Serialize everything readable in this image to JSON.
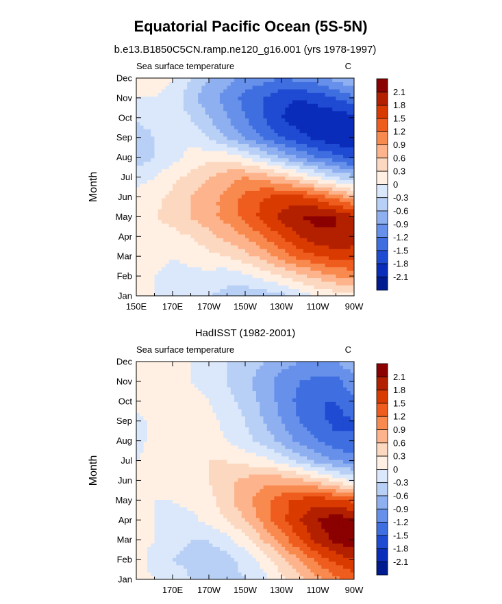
{
  "title": "Equatorial Pacific Ocean (5S-5N)",
  "colorbar_levels": [
    "2.1",
    "1.8",
    "1.5",
    "1.2",
    "0.9",
    "0.6",
    "0.3",
    "0",
    "-0.3",
    "-0.6",
    "-0.9",
    "-1.2",
    "-1.5",
    "-1.8",
    "-2.1"
  ],
  "colorbar_colors": [
    "#8b0000",
    "#b22000",
    "#d93a00",
    "#ef5d1e",
    "#f98a4f",
    "#fdb48c",
    "#fdd8c1",
    "#fff0e3",
    "#dbe8fb",
    "#b9d0f6",
    "#8fb0f0",
    "#6690ea",
    "#3f6ee0",
    "#1f4bd3",
    "#0a2cba",
    "#001a8f"
  ],
  "chart_data": [
    {
      "type": "heatmap",
      "panel_title": "b.e13.B1850C5CN.ramp.ne120_g16.001 (yrs 1978-1997)",
      "left_label": "Sea surface temperature",
      "units": "C",
      "ylabel": "Month",
      "xlabel": "",
      "xlim": [
        150,
        270
      ],
      "x_ticks": [
        150,
        170,
        190,
        210,
        230,
        250,
        270
      ],
      "x_tick_labels": [
        "150E",
        "170E",
        "170W",
        "150W",
        "130W",
        "110W",
        "90W"
      ],
      "y_tick_labels": [
        "Jan",
        "Feb",
        "Mar",
        "Apr",
        "May",
        "Jun",
        "Jul",
        "Aug",
        "Sep",
        "Oct",
        "Nov",
        "Dec"
      ],
      "x": [
        150,
        160,
        170,
        180,
        190,
        200,
        210,
        220,
        230,
        240,
        250,
        260,
        270
      ],
      "z": [
        [
          0.1,
          0.0,
          -0.1,
          -0.2,
          -0.3,
          -0.4,
          -0.5,
          -0.5,
          -0.4,
          -0.2,
          0.0,
          0.1,
          0.2
        ],
        [
          0.1,
          0.0,
          -0.1,
          -0.1,
          -0.1,
          -0.2,
          -0.1,
          0.1,
          0.3,
          0.5,
          0.7,
          0.9,
          1.0
        ],
        [
          0.1,
          0.1,
          0.0,
          0.1,
          0.2,
          0.3,
          0.5,
          0.7,
          1.0,
          1.3,
          1.5,
          1.6,
          1.6
        ],
        [
          0.1,
          0.1,
          0.2,
          0.3,
          0.5,
          0.7,
          0.9,
          1.2,
          1.5,
          1.8,
          2.0,
          2.1,
          2.0
        ],
        [
          0.2,
          0.3,
          0.4,
          0.6,
          0.8,
          1.0,
          1.3,
          1.6,
          1.9,
          2.1,
          2.2,
          2.1,
          1.9
        ],
        [
          0.1,
          0.2,
          0.4,
          0.6,
          0.8,
          1.0,
          1.3,
          1.5,
          1.6,
          1.6,
          1.4,
          1.1,
          0.8
        ],
        [
          -0.1,
          0.0,
          0.2,
          0.4,
          0.6,
          0.8,
          0.9,
          0.8,
          0.6,
          0.3,
          0.0,
          -0.3,
          -0.5
        ],
        [
          -0.5,
          -0.3,
          -0.1,
          0.1,
          0.2,
          0.2,
          0.0,
          -0.3,
          -0.6,
          -0.9,
          -1.2,
          -1.4,
          -1.6
        ],
        [
          -0.6,
          -0.3,
          -0.1,
          -0.1,
          -0.3,
          -0.6,
          -0.9,
          -1.2,
          -1.5,
          -1.7,
          -1.9,
          -2.0,
          -2.1
        ],
        [
          -0.2,
          -0.1,
          -0.1,
          -0.3,
          -0.6,
          -0.9,
          -1.2,
          -1.5,
          -1.8,
          -2.0,
          -2.0,
          -2.0,
          -1.9
        ],
        [
          0.0,
          0.0,
          -0.1,
          -0.5,
          -0.8,
          -1.0,
          -1.3,
          -1.5,
          -1.7,
          -1.8,
          -1.7,
          -1.5,
          -1.3
        ],
        [
          0.2,
          0.1,
          0.0,
          -0.3,
          -0.6,
          -0.8,
          -1.0,
          -1.1,
          -1.2,
          -1.1,
          -1.0,
          -0.8,
          -0.6
        ]
      ],
      "contour_levels": [
        -2.1,
        -1.8,
        -1.5,
        -1.2,
        -0.9,
        -0.6,
        -0.3,
        0,
        0.3,
        0.6,
        0.9,
        1.2,
        1.5,
        1.8,
        2.1
      ]
    },
    {
      "type": "heatmap",
      "panel_title": "HadISST (1982-2001)",
      "left_label": "Sea surface temperature",
      "units": "C",
      "ylabel": "Month",
      "xlabel": "",
      "xlim": [
        150,
        270
      ],
      "x_ticks": [
        170,
        190,
        210,
        230,
        250,
        270
      ],
      "x_tick_labels": [
        "170E",
        "170W",
        "150W",
        "130W",
        "110W",
        "90W"
      ],
      "y_tick_labels": [
        "Jan",
        "Feb",
        "Mar",
        "Apr",
        "May",
        "Jun",
        "Jul",
        "Aug",
        "Sep",
        "Oct",
        "Nov",
        "Dec"
      ],
      "x": [
        150,
        160,
        170,
        180,
        190,
        200,
        210,
        220,
        230,
        240,
        250,
        260,
        270
      ],
      "z": [
        [
          0.1,
          0.0,
          -0.1,
          -0.3,
          -0.4,
          -0.4,
          -0.3,
          -0.1,
          0.2,
          0.5,
          0.8,
          1.1,
          1.3
        ],
        [
          0.1,
          -0.1,
          -0.3,
          -0.4,
          -0.5,
          -0.4,
          -0.2,
          0.1,
          0.5,
          0.9,
          1.3,
          1.6,
          1.8
        ],
        [
          0.1,
          0.0,
          -0.2,
          -0.3,
          -0.3,
          -0.1,
          0.2,
          0.6,
          1.0,
          1.5,
          1.9,
          2.2,
          2.3
        ],
        [
          0.1,
          0.0,
          -0.1,
          -0.1,
          0.1,
          0.3,
          0.6,
          1.0,
          1.4,
          1.8,
          2.1,
          2.3,
          2.2
        ],
        [
          0.1,
          0.0,
          0.0,
          0.1,
          0.2,
          0.5,
          0.8,
          1.1,
          1.4,
          1.6,
          1.7,
          1.6,
          1.4
        ],
        [
          0.1,
          0.1,
          0.1,
          0.2,
          0.3,
          0.5,
          0.7,
          0.8,
          0.8,
          0.7,
          0.5,
          0.2,
          -0.1
        ],
        [
          0.0,
          0.1,
          0.1,
          0.2,
          0.3,
          0.3,
          0.2,
          0.1,
          -0.1,
          -0.4,
          -0.7,
          -0.9,
          -1.0
        ],
        [
          -0.1,
          0.1,
          0.1,
          0.1,
          0.1,
          0.0,
          -0.2,
          -0.4,
          -0.7,
          -1.0,
          -1.2,
          -1.4,
          -1.5
        ],
        [
          -0.1,
          0.1,
          0.2,
          0.2,
          0.1,
          -0.1,
          -0.3,
          -0.6,
          -0.9,
          -1.2,
          -1.4,
          -1.6,
          -1.5
        ],
        [
          0.1,
          0.1,
          0.1,
          0.1,
          0.0,
          -0.2,
          -0.4,
          -0.7,
          -1.0,
          -1.3,
          -1.5,
          -1.5,
          -1.3
        ],
        [
          0.1,
          0.1,
          0.1,
          0.0,
          -0.1,
          -0.3,
          -0.5,
          -0.8,
          -1.0,
          -1.2,
          -1.3,
          -1.3,
          -1.0
        ],
        [
          0.1,
          0.1,
          0.1,
          0.0,
          -0.1,
          -0.3,
          -0.4,
          -0.6,
          -0.8,
          -0.9,
          -1.0,
          -0.9,
          -0.7
        ]
      ],
      "contour_levels": [
        -2.1,
        -1.8,
        -1.5,
        -1.2,
        -0.9,
        -0.6,
        -0.3,
        0,
        0.3,
        0.6,
        0.9,
        1.2,
        1.5,
        1.8,
        2.1
      ]
    }
  ]
}
